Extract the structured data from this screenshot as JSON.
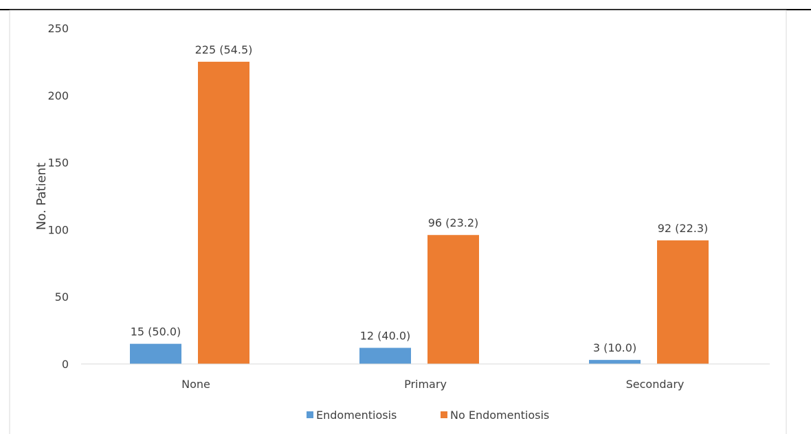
{
  "chart_data": {
    "type": "bar",
    "title": "",
    "xlabel": "",
    "ylabel": "No. Patient",
    "ylim": [
      0,
      250
    ],
    "y_ticks": [
      0,
      50,
      100,
      150,
      200,
      250
    ],
    "categories": [
      "None",
      "Primary",
      "Secondary"
    ],
    "series": [
      {
        "name": "Endomentiosis",
        "color": "#5b9bd5",
        "values": [
          15,
          12,
          3
        ],
        "labels": [
          "15 (50.0)",
          "12 (40.0)",
          "3 (10.0)"
        ]
      },
      {
        "name": "No Endomentiosis",
        "color": "#ed7d31",
        "values": [
          225,
          96,
          92
        ],
        "labels": [
          "225  (54.5)",
          "96 (23.2)",
          "92 (22.3)"
        ]
      }
    ],
    "grid": false,
    "legend_position": "bottom"
  }
}
